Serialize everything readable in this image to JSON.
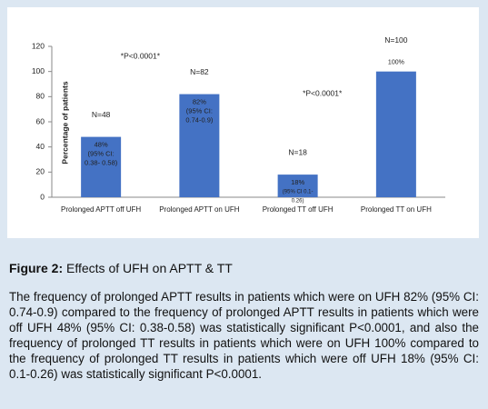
{
  "chart_data": {
    "type": "bar",
    "y_label": "Percentage of patients",
    "categories": [
      "Prolonged APTT off UFH",
      "Prolonged APTT on UFH",
      "Prolonged TT off UFH",
      "Prolonged TT on UFH"
    ],
    "values": [
      48,
      82,
      18,
      100
    ],
    "value_labels": [
      "48%",
      "82%",
      "18%",
      "100%"
    ],
    "ci_labels": [
      [
        "(95% CI:",
        "0.38- 0.58)"
      ],
      [
        "(95% CI:",
        "0.74-0.9)"
      ],
      [
        "(95% CI 0.1-",
        "0.26)"
      ],
      []
    ],
    "n_labels": [
      "N=48",
      "N=82",
      "N=18",
      "N=100"
    ],
    "annotations": [
      "*P<0.0001*",
      "*P<0.0001*"
    ],
    "color": "#4472c4",
    "ylim": [
      0,
      120
    ],
    "yticks": [
      0,
      20,
      40,
      60,
      80,
      100,
      120
    ],
    "grid": false
  },
  "caption": {
    "label": "Figure 2:",
    "title": "Effects of UFH on APTT & TT"
  },
  "paragraph": "The frequency of prolonged APTT results in patients which were on UFH 82% (95% CI: 0.74-0.9) compared to the frequency of prolonged APTT results in patients which were off UFH 48% (95% CI: 0.38-0.58) was statistically significant P<0.0001, and also the frequency of prolonged TT results in patients which were on UFH 100% compared to the frequency of prolonged TT results in patients which were off UFH 18% (95% CI: 0.1-0.26) was statistically significant P<0.0001."
}
